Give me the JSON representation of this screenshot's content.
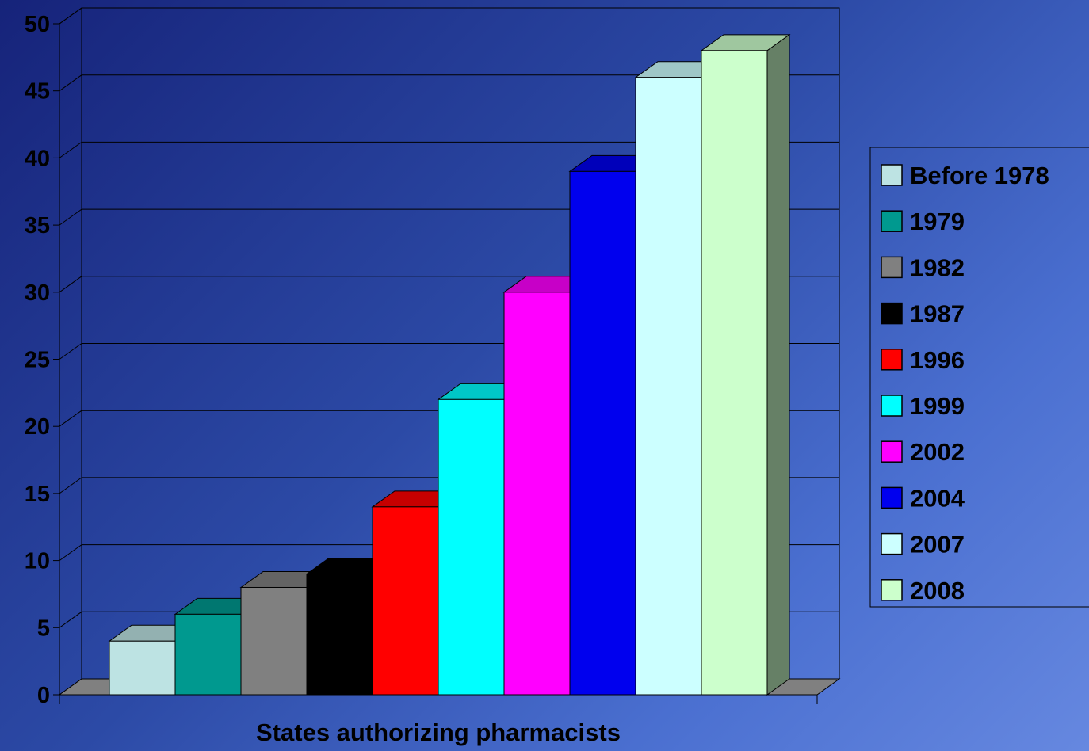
{
  "chart_data": {
    "type": "bar",
    "title": "",
    "xlabel": "States authorizing pharmacists",
    "ylabel": "",
    "ylim": [
      0,
      50
    ],
    "y_ticks": [
      0,
      5,
      10,
      15,
      20,
      25,
      30,
      35,
      40,
      45,
      50
    ],
    "grid": true,
    "legend_position": "right",
    "series": [
      {
        "name": "Before 1978",
        "value": 4,
        "color": "#bde3e3"
      },
      {
        "name": "1979",
        "value": 6,
        "color": "#00998f"
      },
      {
        "name": "1982",
        "value": 8,
        "color": "#808080"
      },
      {
        "name": "1987",
        "value": 9,
        "color": "#000000"
      },
      {
        "name": "1996",
        "value": 14,
        "color": "#ff0000"
      },
      {
        "name": "1999",
        "value": 22,
        "color": "#00ffff"
      },
      {
        "name": "2002",
        "value": 30,
        "color": "#ff00ff"
      },
      {
        "name": "2004",
        "value": 39,
        "color": "#0000ee"
      },
      {
        "name": "2007",
        "value": 46,
        "color": "#ccffff"
      },
      {
        "name": "2008",
        "value": 48,
        "color": "#ccffcc"
      }
    ]
  }
}
